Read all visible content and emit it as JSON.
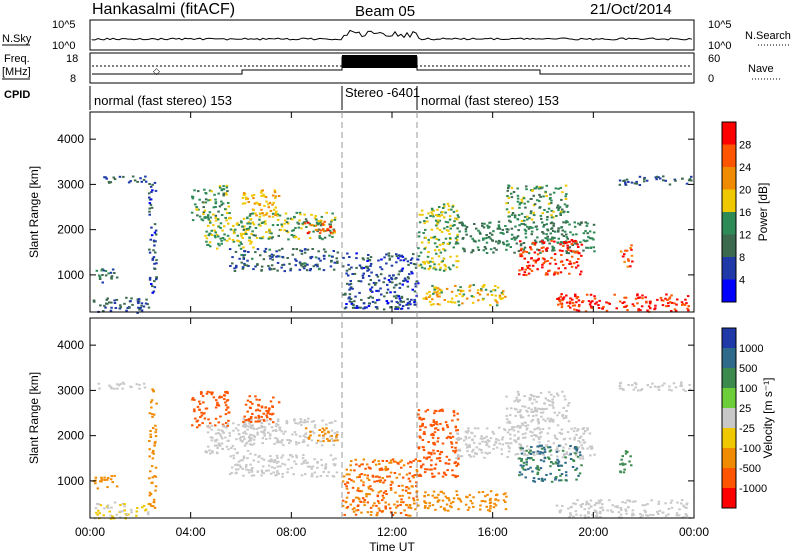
{
  "header": {
    "station": "Hankasalmi (fitACF)",
    "beam": "Beam 05",
    "date": "21/Oct/2014"
  },
  "ancillary": {
    "nsky_label": "N.Sky",
    "nsky_ticks": [
      "10^5",
      "10^0"
    ],
    "nsearch_label": "N.Search",
    "freq_label_1": "Freq.",
    "freq_label_2": "[MHz]",
    "freq_ticks": [
      "18",
      "8"
    ],
    "nave_ticks": [
      "60",
      "0"
    ],
    "nave_label": "Nave",
    "cpid_label": "CPID",
    "cpid_segments": [
      {
        "label": "normal (fast stereo) 153",
        "start_h": 0,
        "end_h": 10
      },
      {
        "label": "Stereo -6401",
        "start_h": 10,
        "end_h": 13
      },
      {
        "label": "normal (fast stereo) 153",
        "start_h": 13,
        "end_h": 24
      }
    ]
  },
  "chart_data": [
    {
      "type": "heatmap",
      "id": "power",
      "title": "",
      "xlabel": "",
      "ylabel": "Slant Range [km]",
      "xlim": [
        0,
        24
      ],
      "ylim": [
        180,
        4600
      ],
      "yticks": [
        1000,
        2000,
        3000,
        4000
      ],
      "colorbar_label": "Power [dB]",
      "colorbar_ticks": [
        "28",
        "24",
        "20",
        "16",
        "12",
        "8",
        "4"
      ],
      "colorbar_colors": [
        "#ff0000",
        "#ff5500",
        "#f08a00",
        "#f0c800",
        "#2e8b57",
        "#3c6a4e",
        "#1f3aa8",
        "#0000ff"
      ],
      "echo_regions": [
        {
          "t0": 0.1,
          "t1": 2.3,
          "r0": 180,
          "r1": 550,
          "v": 6
        },
        {
          "t0": 0.1,
          "t1": 1.1,
          "r0": 850,
          "r1": 1150,
          "v": 8
        },
        {
          "t0": 0.1,
          "t1": 2.2,
          "r0": 3050,
          "r1": 3200,
          "v": 6
        },
        {
          "t0": 2.3,
          "t1": 2.6,
          "r0": 400,
          "r1": 3100,
          "v": 5
        },
        {
          "t0": 4.0,
          "t1": 5.5,
          "r0": 2200,
          "r1": 3000,
          "v": 12
        },
        {
          "t0": 4.5,
          "t1": 6.5,
          "r0": 1600,
          "r1": 2300,
          "v": 14
        },
        {
          "t0": 6.0,
          "t1": 9.8,
          "r0": 1800,
          "r1": 2400,
          "v": 13
        },
        {
          "t0": 5.5,
          "t1": 9.8,
          "r0": 1100,
          "r1": 1600,
          "v": 7
        },
        {
          "t0": 6.0,
          "t1": 7.5,
          "r0": 2300,
          "r1": 2900,
          "v": 18
        },
        {
          "t0": 8.5,
          "t1": 9.8,
          "r0": 1900,
          "r1": 2200,
          "v": 24
        },
        {
          "t0": 10.0,
          "t1": 13.0,
          "r0": 250,
          "r1": 1500,
          "v": 5
        },
        {
          "t0": 13.0,
          "t1": 14.6,
          "r0": 1100,
          "r1": 2600,
          "v": 14
        },
        {
          "t0": 13.2,
          "t1": 16.5,
          "r0": 350,
          "r1": 800,
          "v": 16
        },
        {
          "t0": 14.5,
          "t1": 20.0,
          "r0": 1500,
          "r1": 2200,
          "v": 10
        },
        {
          "t0": 16.5,
          "t1": 19.0,
          "r0": 2200,
          "r1": 3000,
          "v": 12
        },
        {
          "t0": 17.0,
          "t1": 19.5,
          "r0": 1000,
          "r1": 1800,
          "v": 26
        },
        {
          "t0": 18.5,
          "t1": 23.8,
          "r0": 200,
          "r1": 600,
          "v": 27
        },
        {
          "t0": 21.0,
          "t1": 21.5,
          "r0": 1200,
          "r1": 1700,
          "v": 24
        },
        {
          "t0": 21.0,
          "t1": 23.9,
          "r0": 3000,
          "r1": 3200,
          "v": 6
        }
      ]
    },
    {
      "type": "heatmap",
      "id": "velocity",
      "title": "",
      "xlabel": "Time UT",
      "ylabel": "Slant Range [km]",
      "xlim": [
        0,
        24
      ],
      "ylim": [
        180,
        4600
      ],
      "xticks": [
        "00:00",
        "04:00",
        "08:00",
        "12:00",
        "16:00",
        "20:00",
        "00:00"
      ],
      "yticks": [
        1000,
        2000,
        3000,
        4000
      ],
      "colorbar_label": "Velocity [m s⁻¹]",
      "colorbar_ticks": [
        "1000",
        "500",
        "100",
        "25",
        "-25",
        "-100",
        "-500",
        "-1000"
      ],
      "colorbar_colors": [
        "#1f3aa8",
        "#2e6b8b",
        "#3c8a4e",
        "#6ccf3a",
        "#c8c8c8",
        "#f0c800",
        "#f08a00",
        "#ff5500",
        "#ff0000"
      ],
      "echo_regions": [
        {
          "t0": 0.1,
          "t1": 2.3,
          "r0": 180,
          "r1": 550,
          "v": -25
        },
        {
          "t0": 0.1,
          "t1": 1.1,
          "r0": 850,
          "r1": 1150,
          "v": -100
        },
        {
          "t0": 0.1,
          "t1": 2.2,
          "r0": 3050,
          "r1": 3200,
          "v": 0
        },
        {
          "t0": 2.3,
          "t1": 2.6,
          "r0": 400,
          "r1": 3100,
          "v": -100
        },
        {
          "t0": 4.0,
          "t1": 5.5,
          "r0": 2200,
          "r1": 3000,
          "v": -500
        },
        {
          "t0": 4.5,
          "t1": 6.5,
          "r0": 1600,
          "r1": 2300,
          "v": 0
        },
        {
          "t0": 6.0,
          "t1": 9.8,
          "r0": 1800,
          "r1": 2400,
          "v": 0
        },
        {
          "t0": 5.5,
          "t1": 9.8,
          "r0": 1100,
          "r1": 1600,
          "v": 0
        },
        {
          "t0": 6.0,
          "t1": 7.5,
          "r0": 2300,
          "r1": 2900,
          "v": -500
        },
        {
          "t0": 8.5,
          "t1": 9.8,
          "r0": 1900,
          "r1": 2200,
          "v": -100
        },
        {
          "t0": 10.0,
          "t1": 13.0,
          "r0": 250,
          "r1": 1500,
          "v": -300
        },
        {
          "t0": 13.0,
          "t1": 14.6,
          "r0": 1100,
          "r1": 2600,
          "v": -500
        },
        {
          "t0": 13.2,
          "t1": 16.5,
          "r0": 350,
          "r1": 800,
          "v": -200
        },
        {
          "t0": 14.5,
          "t1": 20.0,
          "r0": 1500,
          "r1": 2200,
          "v": 0
        },
        {
          "t0": 16.5,
          "t1": 19.0,
          "r0": 2200,
          "r1": 3000,
          "v": 0
        },
        {
          "t0": 17.0,
          "t1": 19.5,
          "r0": 1000,
          "r1": 1800,
          "v": 300
        },
        {
          "t0": 18.5,
          "t1": 23.8,
          "r0": 200,
          "r1": 600,
          "v": 0
        },
        {
          "t0": 21.0,
          "t1": 21.5,
          "r0": 1200,
          "r1": 1700,
          "v": 100
        },
        {
          "t0": 21.0,
          "t1": 23.9,
          "r0": 3000,
          "r1": 3200,
          "v": 0
        }
      ]
    }
  ]
}
